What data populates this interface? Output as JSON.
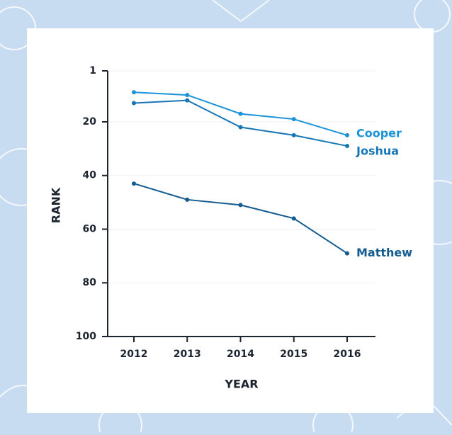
{
  "chart_data": {
    "type": "line",
    "x_label": "YEAR",
    "y_label": "RANK",
    "categories": [
      "2012",
      "2013",
      "2014",
      "2015",
      "2016"
    ],
    "series": [
      {
        "name": "Cooper",
        "color": "#1b93d8",
        "values": [
          9,
          10,
          17,
          19,
          25
        ]
      },
      {
        "name": "Joshua",
        "color": "#1676b6",
        "values": [
          13,
          12,
          22,
          25,
          29
        ]
      },
      {
        "name": "Matthew",
        "color": "#155b8f",
        "values": [
          43,
          49,
          51,
          56,
          69
        ]
      }
    ],
    "ylim": [
      1,
      100
    ],
    "yticks": [
      1,
      20,
      40,
      60,
      80,
      100
    ],
    "y_inverted": true,
    "grid": true
  }
}
